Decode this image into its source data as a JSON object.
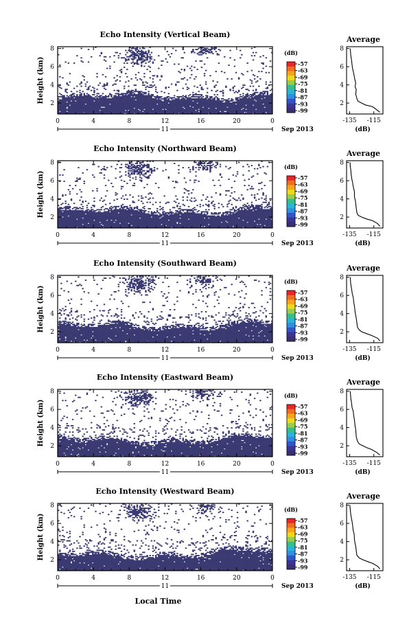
{
  "panels": [
    {
      "title": "Echo Intensity (Vertical Beam)"
    },
    {
      "title": "Echo Intensity (Northward Beam)"
    },
    {
      "title": "Echo Intensity (Southward Beam)"
    },
    {
      "title": "Echo Intensity (Eastward Beam)"
    },
    {
      "title": "Echo Intensity (Westward Beam)"
    }
  ],
  "ylabel": "Height (km)",
  "xlabel": "Local Time",
  "day_label": "11",
  "month_label": "Sep 2013",
  "colorbar": {
    "unit": "(dB)",
    "tick_labels": [
      "-57",
      "-63",
      "-69",
      "-75",
      "-81",
      "-87",
      "-93",
      "-99"
    ],
    "colors": [
      "#e8272a",
      "#f26c22",
      "#f8a51c",
      "#eed91a",
      "#9ccd48",
      "#37bf8a",
      "#29b5d6",
      "#2f8fe0",
      "#3256c9",
      "#3a3596",
      "#3b2f72"
    ]
  },
  "average_panel": {
    "title": "Average",
    "xlabel": "(dB)",
    "x_tick_labels": [
      "-135",
      "-115"
    ],
    "y_tick_labels": [
      "2",
      "4",
      "6",
      "8"
    ]
  },
  "chart_data": {
    "type": "heatmap",
    "x_tick_labels": [
      "0",
      "4",
      "8",
      "12",
      "16",
      "20",
      "0"
    ],
    "y_tick_labels": [
      "2",
      "4",
      "6",
      "8"
    ],
    "xlim": [
      0,
      24
    ],
    "ylim": [
      0.8,
      8.2
    ],
    "clim": [
      -99,
      -57
    ],
    "fill_color": "#3b3a72",
    "profiles": [
      {
        "beam": "Vertical",
        "height_km": [
          1.0,
          1.3,
          1.6,
          1.8,
          2.0,
          2.2,
          2.5,
          3.0,
          3.5,
          3.8,
          4.2,
          4.8,
          5.2,
          5.8,
          6.2,
          6.8,
          7.2,
          7.6,
          8.0
        ],
        "avg_db": [
          -110,
          -113,
          -116,
          -122,
          -125,
          -128,
          -129,
          -130,
          -129.5,
          -130.5,
          -130,
          -131,
          -131.5,
          -132.5,
          -133,
          -133.5,
          -134,
          -134.2,
          -134.5
        ]
      },
      {
        "beam": "Northward",
        "height_km": [
          1.0,
          1.3,
          1.6,
          1.8,
          2.0,
          2.2,
          2.5,
          3.0,
          3.5,
          3.8,
          4.2,
          4.8,
          5.2,
          5.8,
          6.2,
          6.8,
          7.2,
          7.6,
          8.0
        ],
        "avg_db": [
          -110,
          -112,
          -116,
          -121,
          -125,
          -128,
          -129,
          -129.5,
          -130,
          -130.2,
          -131,
          -131,
          -131.8,
          -132.5,
          -133.2,
          -133.8,
          -134,
          -134.5,
          -134.5
        ]
      },
      {
        "beam": "Southward",
        "height_km": [
          1.0,
          1.3,
          1.6,
          1.8,
          2.0,
          2.2,
          2.5,
          3.0,
          3.5,
          3.8,
          4.2,
          4.8,
          5.2,
          5.8,
          6.2,
          6.8,
          7.2,
          7.6,
          8.0
        ],
        "avg_db": [
          -110,
          -112,
          -117,
          -121,
          -125,
          -127,
          -128.5,
          -129,
          -129.5,
          -130,
          -130.5,
          -131,
          -131.5,
          -132,
          -132.8,
          -133.5,
          -134,
          -134.3,
          -134.5
        ]
      },
      {
        "beam": "Eastward",
        "height_km": [
          1.0,
          1.3,
          1.6,
          1.8,
          2.0,
          2.2,
          2.5,
          3.0,
          3.5,
          3.8,
          4.2,
          4.8,
          5.2,
          5.8,
          6.2,
          6.8,
          7.2,
          7.6,
          8.0
        ],
        "avg_db": [
          -110,
          -113,
          -117,
          -121,
          -124,
          -127,
          -128.5,
          -129.5,
          -129.8,
          -130,
          -130.5,
          -131,
          -131.5,
          -132,
          -133,
          -133.5,
          -134,
          -134.2,
          -134.5
        ]
      },
      {
        "beam": "Westward",
        "height_km": [
          1.0,
          1.3,
          1.6,
          1.8,
          2.0,
          2.2,
          2.5,
          3.0,
          3.5,
          3.8,
          4.2,
          4.8,
          5.2,
          5.8,
          6.2,
          6.8,
          7.2,
          7.6,
          8.0
        ],
        "avg_db": [
          -110,
          -112,
          -116,
          -120,
          -124,
          -127,
          -129,
          -129.5,
          -130,
          -130.5,
          -131,
          -131.2,
          -132,
          -132.5,
          -133,
          -133.8,
          -134.2,
          -134.5,
          -134.8
        ]
      }
    ]
  }
}
